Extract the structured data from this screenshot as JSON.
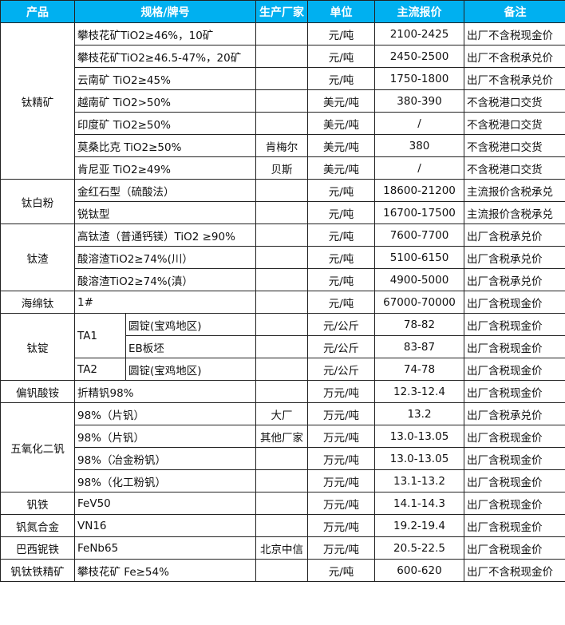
{
  "header": {
    "product": "产品",
    "spec": "规格/牌号",
    "producer": "生产厂家",
    "unit": "单位",
    "price": "主流报价",
    "note": "备注"
  },
  "colors": {
    "header_bg": "#00B0F0",
    "header_text": "#ffffff"
  },
  "groups": [
    {
      "product": "钛精矿",
      "rows": [
        {
          "spec": "攀枝花矿TiO2≥46%，10矿",
          "producer": "",
          "unit": "元/吨",
          "price": "2100-2425",
          "note": "出厂不含税现金价"
        },
        {
          "spec": "攀枝花矿TiO2≥46.5-47%，20矿",
          "producer": "",
          "unit": "元/吨",
          "price": "2450-2500",
          "note": "出厂不含税承兑价"
        },
        {
          "spec": "云南矿 TiO2≥45%",
          "producer": "",
          "unit": "元/吨",
          "price": "1750-1800",
          "note": "出厂不含税承兑价"
        },
        {
          "spec": "越南矿 TiO2>50%",
          "producer": "",
          "unit": "美元/吨",
          "price": "380-390",
          "note": "不含税港口交货"
        },
        {
          "spec": "印度矿 TiO2≥50%",
          "producer": "",
          "unit": "美元/吨",
          "price": "/",
          "note": "不含税港口交货"
        },
        {
          "spec": "莫桑比克 TiO2≥50%",
          "producer": "肯梅尔",
          "unit": "美元/吨",
          "price": "380",
          "note": "不含税港口交货"
        },
        {
          "spec": "肯尼亚 TiO2≥49%",
          "producer": "贝斯",
          "unit": "美元/吨",
          "price": "/",
          "note": "不含税港口交货"
        }
      ]
    },
    {
      "product": "钛白粉",
      "rows": [
        {
          "spec": "金红石型（硫酸法）",
          "producer": "",
          "unit": "元/吨",
          "price": "18600-21200",
          "note": "主流报价含税承兑"
        },
        {
          "spec": "锐钛型",
          "producer": "",
          "unit": "元/吨",
          "price": "16700-17500",
          "note": "主流报价含税承兑"
        }
      ]
    },
    {
      "product": "钛渣",
      "rows": [
        {
          "spec": "高钛渣（普通钙镁）TiO2 ≥90%",
          "producer": "",
          "unit": "元/吨",
          "price": "7600-7700",
          "note": "出厂含税承兑价"
        },
        {
          "spec": "酸溶渣TiO2≥74%(川）",
          "producer": "",
          "unit": "元/吨",
          "price": "5100-6150",
          "note": "出厂含税承兑价"
        },
        {
          "spec": "酸溶渣TiO2≥74%(滇）",
          "producer": "",
          "unit": "元/吨",
          "price": "4900-5000",
          "note": "出厂含税承兑价"
        }
      ]
    },
    {
      "product": "海绵钛",
      "rows": [
        {
          "spec": "1#",
          "producer": "",
          "unit": "元/吨",
          "price": "67000-70000",
          "note": "出厂含税现金价"
        }
      ]
    },
    {
      "product": "钛锭",
      "rows": [
        {
          "grade": "TA1",
          "form": "圆锭(宝鸡地区)",
          "producer": "",
          "unit": "元/公斤",
          "price": "78-82",
          "note": "出厂含税现金价"
        },
        {
          "grade": "",
          "form": "EB板坯",
          "producer": "",
          "unit": "元/公斤",
          "price": "83-87",
          "note": "出厂含税现金价"
        },
        {
          "grade": "TA2",
          "form": "圆锭(宝鸡地区)",
          "producer": "",
          "unit": "元/公斤",
          "price": "74-78",
          "note": "出厂含税现金价"
        }
      ]
    },
    {
      "product": "偏钒酸铵",
      "rows": [
        {
          "spec": "折精钒98%",
          "producer": "",
          "unit": "万元/吨",
          "price": "12.3-12.4",
          "note": "出厂含税现金价"
        }
      ]
    },
    {
      "product": "五氧化二钒",
      "rows": [
        {
          "spec": "98%（片钒）",
          "producer": "大厂",
          "unit": "万元/吨",
          "price": "13.2",
          "note": "出厂含税承兑价"
        },
        {
          "spec": "98%（片钒）",
          "producer": "其他厂家",
          "unit": "万元/吨",
          "price": "13.0-13.05",
          "note": "出厂含税现金价"
        },
        {
          "spec": "98%（冶金粉钒）",
          "producer": "",
          "unit": "万元/吨",
          "price": "13.0-13.05",
          "note": "出厂含税现金价"
        },
        {
          "spec": "98%（化工粉钒）",
          "producer": "",
          "unit": "万元/吨",
          "price": "13.1-13.2",
          "note": "出厂含税现金价"
        }
      ]
    },
    {
      "product": "钒铁",
      "rows": [
        {
          "spec": "FeV50",
          "producer": "",
          "unit": "万元/吨",
          "price": "14.1-14.3",
          "note": "出厂含税现金价"
        }
      ]
    },
    {
      "product": "钒氮合金",
      "rows": [
        {
          "spec": "VN16",
          "producer": "",
          "unit": "万元/吨",
          "price": "19.2-19.4",
          "note": "出厂含税现金价"
        }
      ]
    },
    {
      "product": "巴西铌铁",
      "rows": [
        {
          "spec": "FeNb65",
          "producer": "北京中信",
          "unit": "万元/吨",
          "price": "20.5-22.5",
          "note": "出厂含税现金价"
        }
      ]
    },
    {
      "product": "钒钛铁精矿",
      "rows": [
        {
          "spec": "攀枝花矿 Fe≥54%",
          "producer": "",
          "unit": "元/吨",
          "price": "600-620",
          "note": "出厂不含税现金价"
        }
      ]
    }
  ]
}
